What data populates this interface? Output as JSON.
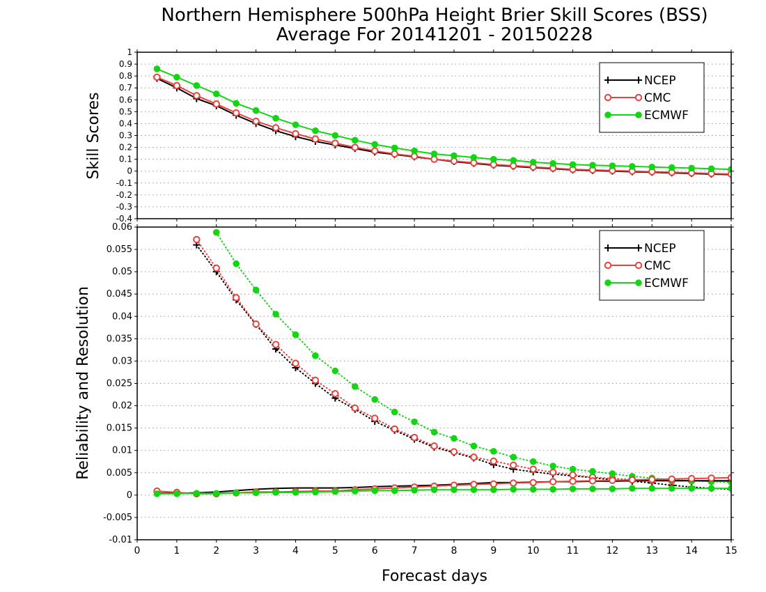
{
  "figure": {
    "title_line1": "Northern Hemisphere 500hPa Height Brier Skill Scores (BSS)",
    "title_line2": "Average For 20141201 - 20150228",
    "xlabel": "Forecast days"
  },
  "colors": {
    "NCEP": "#000000",
    "CMC": "#e8413c",
    "ECMWF": "#12d612",
    "grid": "#9a9a9a"
  },
  "chart_data": [
    {
      "type": "line",
      "panel": "skill",
      "ylabel": "Skill Scores",
      "xlim": [
        0,
        15
      ],
      "ylim": [
        -0.4,
        1
      ],
      "grid": true,
      "legend_position": "top-right",
      "x_ticks": [
        0,
        1,
        2,
        3,
        4,
        5,
        6,
        7,
        8,
        9,
        10,
        11,
        12,
        13,
        14,
        15
      ],
      "y_ticks": [
        -0.4,
        -0.3,
        -0.2,
        -0.1,
        0,
        0.1,
        0.2,
        0.3,
        0.4,
        0.5,
        0.6,
        0.7,
        0.8,
        0.9,
        1
      ],
      "y_tick_labels": [
        "-0.4",
        "-0.3",
        "-0.2",
        "-0.1",
        "0",
        "0.1",
        "0.2",
        "0.3",
        "0.4",
        "0.5",
        "0.6",
        "0.7",
        "0.8",
        "0.9",
        "1"
      ],
      "x": [
        0.5,
        1,
        1.5,
        2,
        2.5,
        3,
        3.5,
        4,
        4.5,
        5,
        5.5,
        6,
        6.5,
        7,
        7.5,
        8,
        8.5,
        9,
        9.5,
        10,
        10.5,
        11,
        11.5,
        12,
        12.5,
        13,
        13.5,
        14,
        14.5,
        15
      ],
      "series": [
        {
          "name": "NCEP",
          "marker": "plus",
          "values": [
            0.78,
            0.7,
            0.61,
            0.55,
            0.47,
            0.4,
            0.34,
            0.29,
            0.25,
            0.22,
            0.19,
            0.16,
            0.14,
            0.12,
            0.1,
            0.08,
            0.065,
            0.05,
            0.04,
            0.03,
            0.02,
            0.01,
            0.005,
            0,
            -0.005,
            -0.01,
            -0.015,
            -0.02,
            -0.025,
            -0.03
          ]
        },
        {
          "name": "CMC",
          "marker": "open-circle",
          "values": [
            0.79,
            0.72,
            0.635,
            0.565,
            0.49,
            0.42,
            0.365,
            0.315,
            0.27,
            0.235,
            0.2,
            0.17,
            0.145,
            0.125,
            0.1,
            0.085,
            0.07,
            0.055,
            0.045,
            0.035,
            0.025,
            0.015,
            0.01,
            0.005,
            0,
            -0.005,
            -0.01,
            -0.015,
            -0.02,
            -0.025
          ]
        },
        {
          "name": "ECMWF",
          "marker": "filled-circle",
          "values": [
            0.86,
            0.79,
            0.72,
            0.65,
            0.57,
            0.51,
            0.445,
            0.39,
            0.34,
            0.3,
            0.26,
            0.225,
            0.195,
            0.17,
            0.145,
            0.13,
            0.115,
            0.1,
            0.09,
            0.075,
            0.065,
            0.055,
            0.05,
            0.045,
            0.04,
            0.035,
            0.03,
            0.025,
            0.02,
            0.015
          ]
        }
      ],
      "legend": [
        "NCEP",
        "CMC",
        "ECMWF"
      ]
    },
    {
      "type": "line",
      "panel": "reliability_resolution",
      "ylabel": "Reliability and Resolution",
      "xlim": [
        0,
        15
      ],
      "ylim": [
        -0.01,
        0.06
      ],
      "grid": true,
      "legend_position": "top-right",
      "x_ticks": [
        0,
        1,
        2,
        3,
        4,
        5,
        6,
        7,
        8,
        9,
        10,
        11,
        12,
        13,
        14,
        15
      ],
      "y_ticks": [
        -0.01,
        -0.005,
        0,
        0.005,
        0.01,
        0.015,
        0.02,
        0.025,
        0.03,
        0.035,
        0.04,
        0.045,
        0.05,
        0.055,
        0.06
      ],
      "y_tick_labels": [
        "-0.01",
        "-0.005",
        "0",
        "0.005",
        "0.01",
        "0.015",
        "0.02",
        "0.025",
        "0.03",
        "0.035",
        "0.04",
        "0.045",
        "0.05",
        "0.055",
        "0.06"
      ],
      "x": [
        0.5,
        1,
        1.5,
        2,
        2.5,
        3,
        3.5,
        4,
        4.5,
        5,
        5.5,
        6,
        6.5,
        7,
        7.5,
        8,
        8.5,
        9,
        9.5,
        10,
        10.5,
        11,
        11.5,
        12,
        12.5,
        13,
        13.5,
        14,
        14.5,
        15
      ],
      "resolution_series": [
        {
          "name": "NCEP",
          "marker": "plus",
          "line": "dotted",
          "values": [
            null,
            null,
            0.056,
            0.05,
            0.0437,
            0.0382,
            0.0327,
            0.0285,
            0.025,
            0.0217,
            0.0192,
            0.0165,
            0.0145,
            0.0125,
            0.0107,
            0.0095,
            0.0083,
            0.0068,
            0.0058,
            0.0052,
            0.0047,
            0.0043,
            0.0039,
            0.0034,
            0.0031,
            0.0027,
            0.0022,
            0.0018,
            0.0015,
            0.0013
          ]
        },
        {
          "name": "CMC",
          "marker": "open-circle",
          "line": "dotted",
          "values": [
            null,
            null,
            0.0572,
            0.0508,
            0.0442,
            0.0383,
            0.0337,
            0.0295,
            0.0257,
            0.0227,
            0.0195,
            0.0172,
            0.0148,
            0.0129,
            0.011,
            0.0097,
            0.0085,
            0.0076,
            0.0067,
            0.0058,
            0.0051,
            0.0045,
            0.004,
            0.0037,
            0.0035,
            0.0033,
            0.0032,
            0.0032,
            0.0031,
            0.0031
          ]
        },
        {
          "name": "ECMWF",
          "marker": "filled-circle",
          "line": "dotted",
          "values": [
            null,
            null,
            null,
            0.0588,
            0.0518,
            0.0459,
            0.0405,
            0.0359,
            0.0312,
            0.0278,
            0.0243,
            0.0214,
            0.0186,
            0.0164,
            0.0141,
            0.0127,
            0.011,
            0.0098,
            0.0085,
            0.0075,
            0.0065,
            0.0058,
            0.0053,
            0.0048,
            0.0042,
            0.0038,
            0.0034,
            0.0032,
            0.003,
            0.0029
          ]
        }
      ],
      "reliability_series": [
        {
          "name": "NCEP",
          "marker": "none",
          "line": "solid",
          "values": [
            0.0004,
            0.0004,
            0.0005,
            0.0007,
            0.001,
            0.0013,
            0.0015,
            0.0016,
            0.0016,
            0.0016,
            0.0017,
            0.0019,
            0.002,
            0.0021,
            0.0022,
            0.0024,
            0.0026,
            0.0028,
            0.0028,
            0.0029,
            0.003,
            0.003,
            0.0031,
            0.0031,
            0.0032,
            0.0032,
            0.0032,
            0.0032,
            0.0032,
            0.0032
          ]
        },
        {
          "name": "CMC",
          "marker": "open-circle",
          "line": "solid",
          "values": [
            0.0009,
            0.0006,
            0.0003,
            0.0003,
            0.0005,
            0.0007,
            0.0007,
            0.0008,
            0.0009,
            0.0009,
            0.0012,
            0.0014,
            0.0016,
            0.0018,
            0.002,
            0.0022,
            0.0024,
            0.0025,
            0.0027,
            0.0028,
            0.003,
            0.0031,
            0.0032,
            0.0033,
            0.0034,
            0.0035,
            0.0036,
            0.0037,
            0.0038,
            0.0039
          ]
        },
        {
          "name": "ECMWF",
          "marker": "filled-circle",
          "line": "solid",
          "values": [
            0.0003,
            0.0003,
            0.0004,
            0.0004,
            0.0005,
            0.0005,
            0.0006,
            0.0006,
            0.0007,
            0.0008,
            0.0009,
            0.001,
            0.001,
            0.0011,
            0.0012,
            0.0012,
            0.0012,
            0.0012,
            0.0013,
            0.0013,
            0.0013,
            0.0014,
            0.0014,
            0.0014,
            0.0015,
            0.0015,
            0.0015,
            0.0015,
            0.0015,
            0.0015
          ]
        }
      ],
      "legend": [
        "NCEP",
        "CMC",
        "ECMWF"
      ]
    }
  ]
}
